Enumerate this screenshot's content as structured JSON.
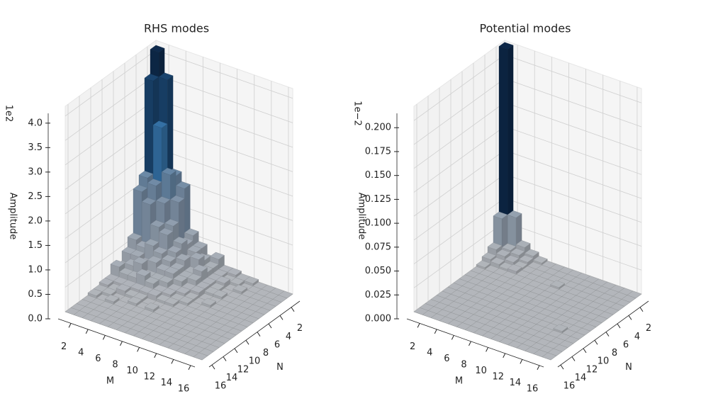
{
  "chart_data": [
    {
      "type": "bar3d",
      "title": "RHS modes",
      "xlabel": "M",
      "ylabel": "N",
      "zlabel": "Amplitude",
      "offset_text": "1e2",
      "x": [
        1,
        2,
        3,
        4,
        5,
        6,
        7,
        8,
        9,
        10,
        11,
        12,
        13,
        14,
        15,
        16
      ],
      "y": [
        1,
        2,
        3,
        4,
        5,
        6,
        7,
        8,
        9,
        10,
        11,
        12,
        13,
        14,
        15,
        16
      ],
      "xlim": [
        0.5,
        16.5
      ],
      "ylim": [
        0.5,
        16.5
      ],
      "zlim": [
        0,
        4.2
      ],
      "xticks": [
        2,
        4,
        6,
        8,
        10,
        12,
        14,
        16
      ],
      "yticks": [
        2,
        4,
        6,
        8,
        10,
        12,
        14,
        16
      ],
      "zticks": [
        {
          "value": 0,
          "label": "0.0"
        },
        0.5,
        {
          "value": 1,
          "label": "1.0"
        },
        1.5,
        {
          "value": 2,
          "label": "2.0"
        },
        2.5,
        {
          "value": 3,
          "label": "3.0"
        },
        3.5,
        {
          "value": 4,
          "label": "4.0"
        }
      ],
      "colormap": [
        "#b3b6bb",
        "#7c90a6",
        "#2e6da4",
        "#0b2545"
      ],
      "grid": true,
      "z": [
        [
          4.1,
          3.6,
          1.7,
          1.5,
          0.6,
          0.4,
          0.2,
          0.3,
          0.1,
          0.1,
          0.05,
          0.05,
          0,
          0,
          0,
          0
        ],
        [
          3.6,
          2.7,
          1.6,
          1.3,
          0.5,
          0.4,
          0.3,
          0.2,
          0.1,
          0.05,
          0.05,
          0,
          0,
          0,
          0,
          0
        ],
        [
          1.7,
          1.8,
          1.3,
          0.9,
          0.6,
          0.3,
          0.4,
          0.2,
          0.1,
          0.1,
          0,
          0.05,
          0,
          0,
          0,
          0
        ],
        [
          1.5,
          1.3,
          0.9,
          0.8,
          0.5,
          0.4,
          0.2,
          0.3,
          0.1,
          0.05,
          0,
          0,
          0,
          0,
          0,
          0
        ],
        [
          0.6,
          0.5,
          0.6,
          0.5,
          0.4,
          0.3,
          0.2,
          0.2,
          0.1,
          0.05,
          0.05,
          0,
          0,
          0,
          0,
          0
        ],
        [
          0.4,
          0.4,
          0.3,
          0.4,
          0.3,
          0.3,
          0.2,
          0.1,
          0.1,
          0,
          0,
          0,
          0,
          0,
          0,
          0
        ],
        [
          0.2,
          0.3,
          0.4,
          0.2,
          0.2,
          0.2,
          0.1,
          0.1,
          0.05,
          0,
          0.05,
          0,
          0,
          0,
          0,
          0
        ],
        [
          0.3,
          0.2,
          0.2,
          0.3,
          0.2,
          0.1,
          0.1,
          0.05,
          0.05,
          0,
          0,
          0,
          0,
          0,
          0,
          0
        ],
        [
          0.1,
          0.1,
          0.1,
          0.1,
          0.1,
          0.1,
          0.05,
          0.05,
          0,
          0,
          0,
          0,
          0,
          0,
          0,
          0
        ],
        [
          0.1,
          0.05,
          0.1,
          0.05,
          0.05,
          0,
          0,
          0,
          0,
          0,
          0,
          0,
          0,
          0,
          0,
          0
        ],
        [
          0.05,
          0.05,
          0,
          0,
          0.05,
          0,
          0.05,
          0,
          0,
          0,
          0,
          0,
          0,
          0,
          0,
          0
        ],
        [
          0.05,
          0,
          0.05,
          0,
          0,
          0,
          0,
          0,
          0,
          0,
          0,
          0,
          0,
          0,
          0,
          0
        ],
        [
          0,
          0,
          0,
          0,
          0,
          0,
          0,
          0,
          0,
          0,
          0,
          0,
          0,
          0,
          0,
          0
        ],
        [
          0,
          0,
          0,
          0,
          0,
          0,
          0,
          0,
          0,
          0,
          0,
          0,
          0,
          0,
          0,
          0
        ],
        [
          0,
          0,
          0,
          0,
          0,
          0,
          0,
          0,
          0,
          0,
          0,
          0,
          0,
          0,
          0,
          0
        ],
        [
          0,
          0,
          0,
          0,
          0,
          0,
          0,
          0,
          0,
          0,
          0,
          0,
          0,
          0,
          0,
          0
        ]
      ]
    },
    {
      "type": "bar3d",
      "title": "Potential modes",
      "xlabel": "M",
      "ylabel": "N",
      "zlabel": "Amplitude",
      "offset_text": "1e−2",
      "x": [
        1,
        2,
        3,
        4,
        5,
        6,
        7,
        8,
        9,
        10,
        11,
        12,
        13,
        14,
        15,
        16
      ],
      "y": [
        1,
        2,
        3,
        4,
        5,
        6,
        7,
        8,
        9,
        10,
        11,
        12,
        13,
        14,
        15,
        16
      ],
      "xlim": [
        0.5,
        16.5
      ],
      "ylim": [
        0.5,
        16.5
      ],
      "zlim": [
        0,
        0.215
      ],
      "xticks": [
        2,
        4,
        6,
        8,
        10,
        12,
        14,
        16
      ],
      "yticks": [
        2,
        4,
        6,
        8,
        10,
        12,
        14,
        16
      ],
      "zticks": [
        {
          "value": 0,
          "label": "0.000"
        },
        0.025,
        {
          "value": 0.05,
          "label": "0.050"
        },
        0.075,
        {
          "value": 0.1,
          "label": "0.100"
        },
        0.125,
        {
          "value": 0.15,
          "label": "0.150"
        },
        0.175,
        {
          "value": 0.2,
          "label": "0.200"
        }
      ],
      "colormap": [
        "#b3b6bb",
        "#7c90a6",
        "#2e6da4",
        "#0b2545"
      ],
      "grid": true,
      "z": [
        [
          0.213,
          0.04,
          0.012,
          0.006,
          0.002,
          0,
          0,
          0,
          0,
          0,
          0,
          0,
          0,
          0,
          0,
          0
        ],
        [
          0.04,
          0.01,
          0.008,
          0.004,
          0,
          0,
          0,
          0,
          0,
          0,
          0,
          0,
          0,
          0,
          0,
          0
        ],
        [
          0.012,
          0.008,
          0.005,
          0.002,
          0,
          0,
          0,
          0,
          0,
          0,
          0,
          0,
          0,
          0,
          0,
          0
        ],
        [
          0.006,
          0.004,
          0.002,
          0.003,
          0,
          0,
          0,
          0,
          0,
          0,
          0,
          0,
          0,
          0,
          0,
          0
        ],
        [
          0.002,
          0,
          0,
          0,
          0,
          0,
          0,
          0,
          0,
          0,
          0,
          0,
          0,
          0,
          0,
          0
        ],
        [
          0,
          0,
          0,
          0,
          0,
          0,
          0,
          0,
          0,
          0,
          0,
          0,
          0,
          0,
          0,
          0
        ],
        [
          0,
          0,
          0,
          0,
          0,
          0,
          0,
          0,
          0,
          0,
          0,
          0,
          0,
          0,
          0,
          0
        ],
        [
          0,
          0,
          0,
          0,
          0,
          0,
          0,
          0,
          0,
          0,
          0,
          0,
          0,
          0,
          0,
          0
        ],
        [
          0,
          0,
          0,
          0.002,
          0,
          0,
          0,
          0,
          0,
          0,
          0,
          0,
          0,
          0,
          0,
          0
        ],
        [
          0,
          0,
          0,
          0,
          0,
          0,
          0,
          0,
          0,
          0,
          0,
          0,
          0,
          0,
          0,
          0
        ],
        [
          0,
          0,
          0,
          0,
          0,
          0,
          0,
          0,
          0,
          0,
          0,
          0,
          0,
          0,
          0,
          0
        ],
        [
          0,
          0,
          0,
          0,
          0,
          0,
          0,
          0,
          0,
          0,
          0,
          0,
          0,
          0,
          0,
          0
        ],
        [
          0,
          0,
          0,
          0,
          0,
          0,
          0,
          0,
          0,
          0,
          0,
          0,
          0,
          0,
          0,
          0
        ],
        [
          0,
          0,
          0,
          0,
          0,
          0,
          0,
          0,
          0,
          0,
          0.002,
          0,
          0,
          0,
          0,
          0
        ],
        [
          0,
          0,
          0,
          0,
          0,
          0,
          0,
          0,
          0,
          0,
          0,
          0,
          0,
          0,
          0,
          0
        ],
        [
          0,
          0,
          0,
          0,
          0,
          0,
          0,
          0,
          0,
          0,
          0,
          0,
          0,
          0,
          0,
          0
        ]
      ]
    }
  ]
}
